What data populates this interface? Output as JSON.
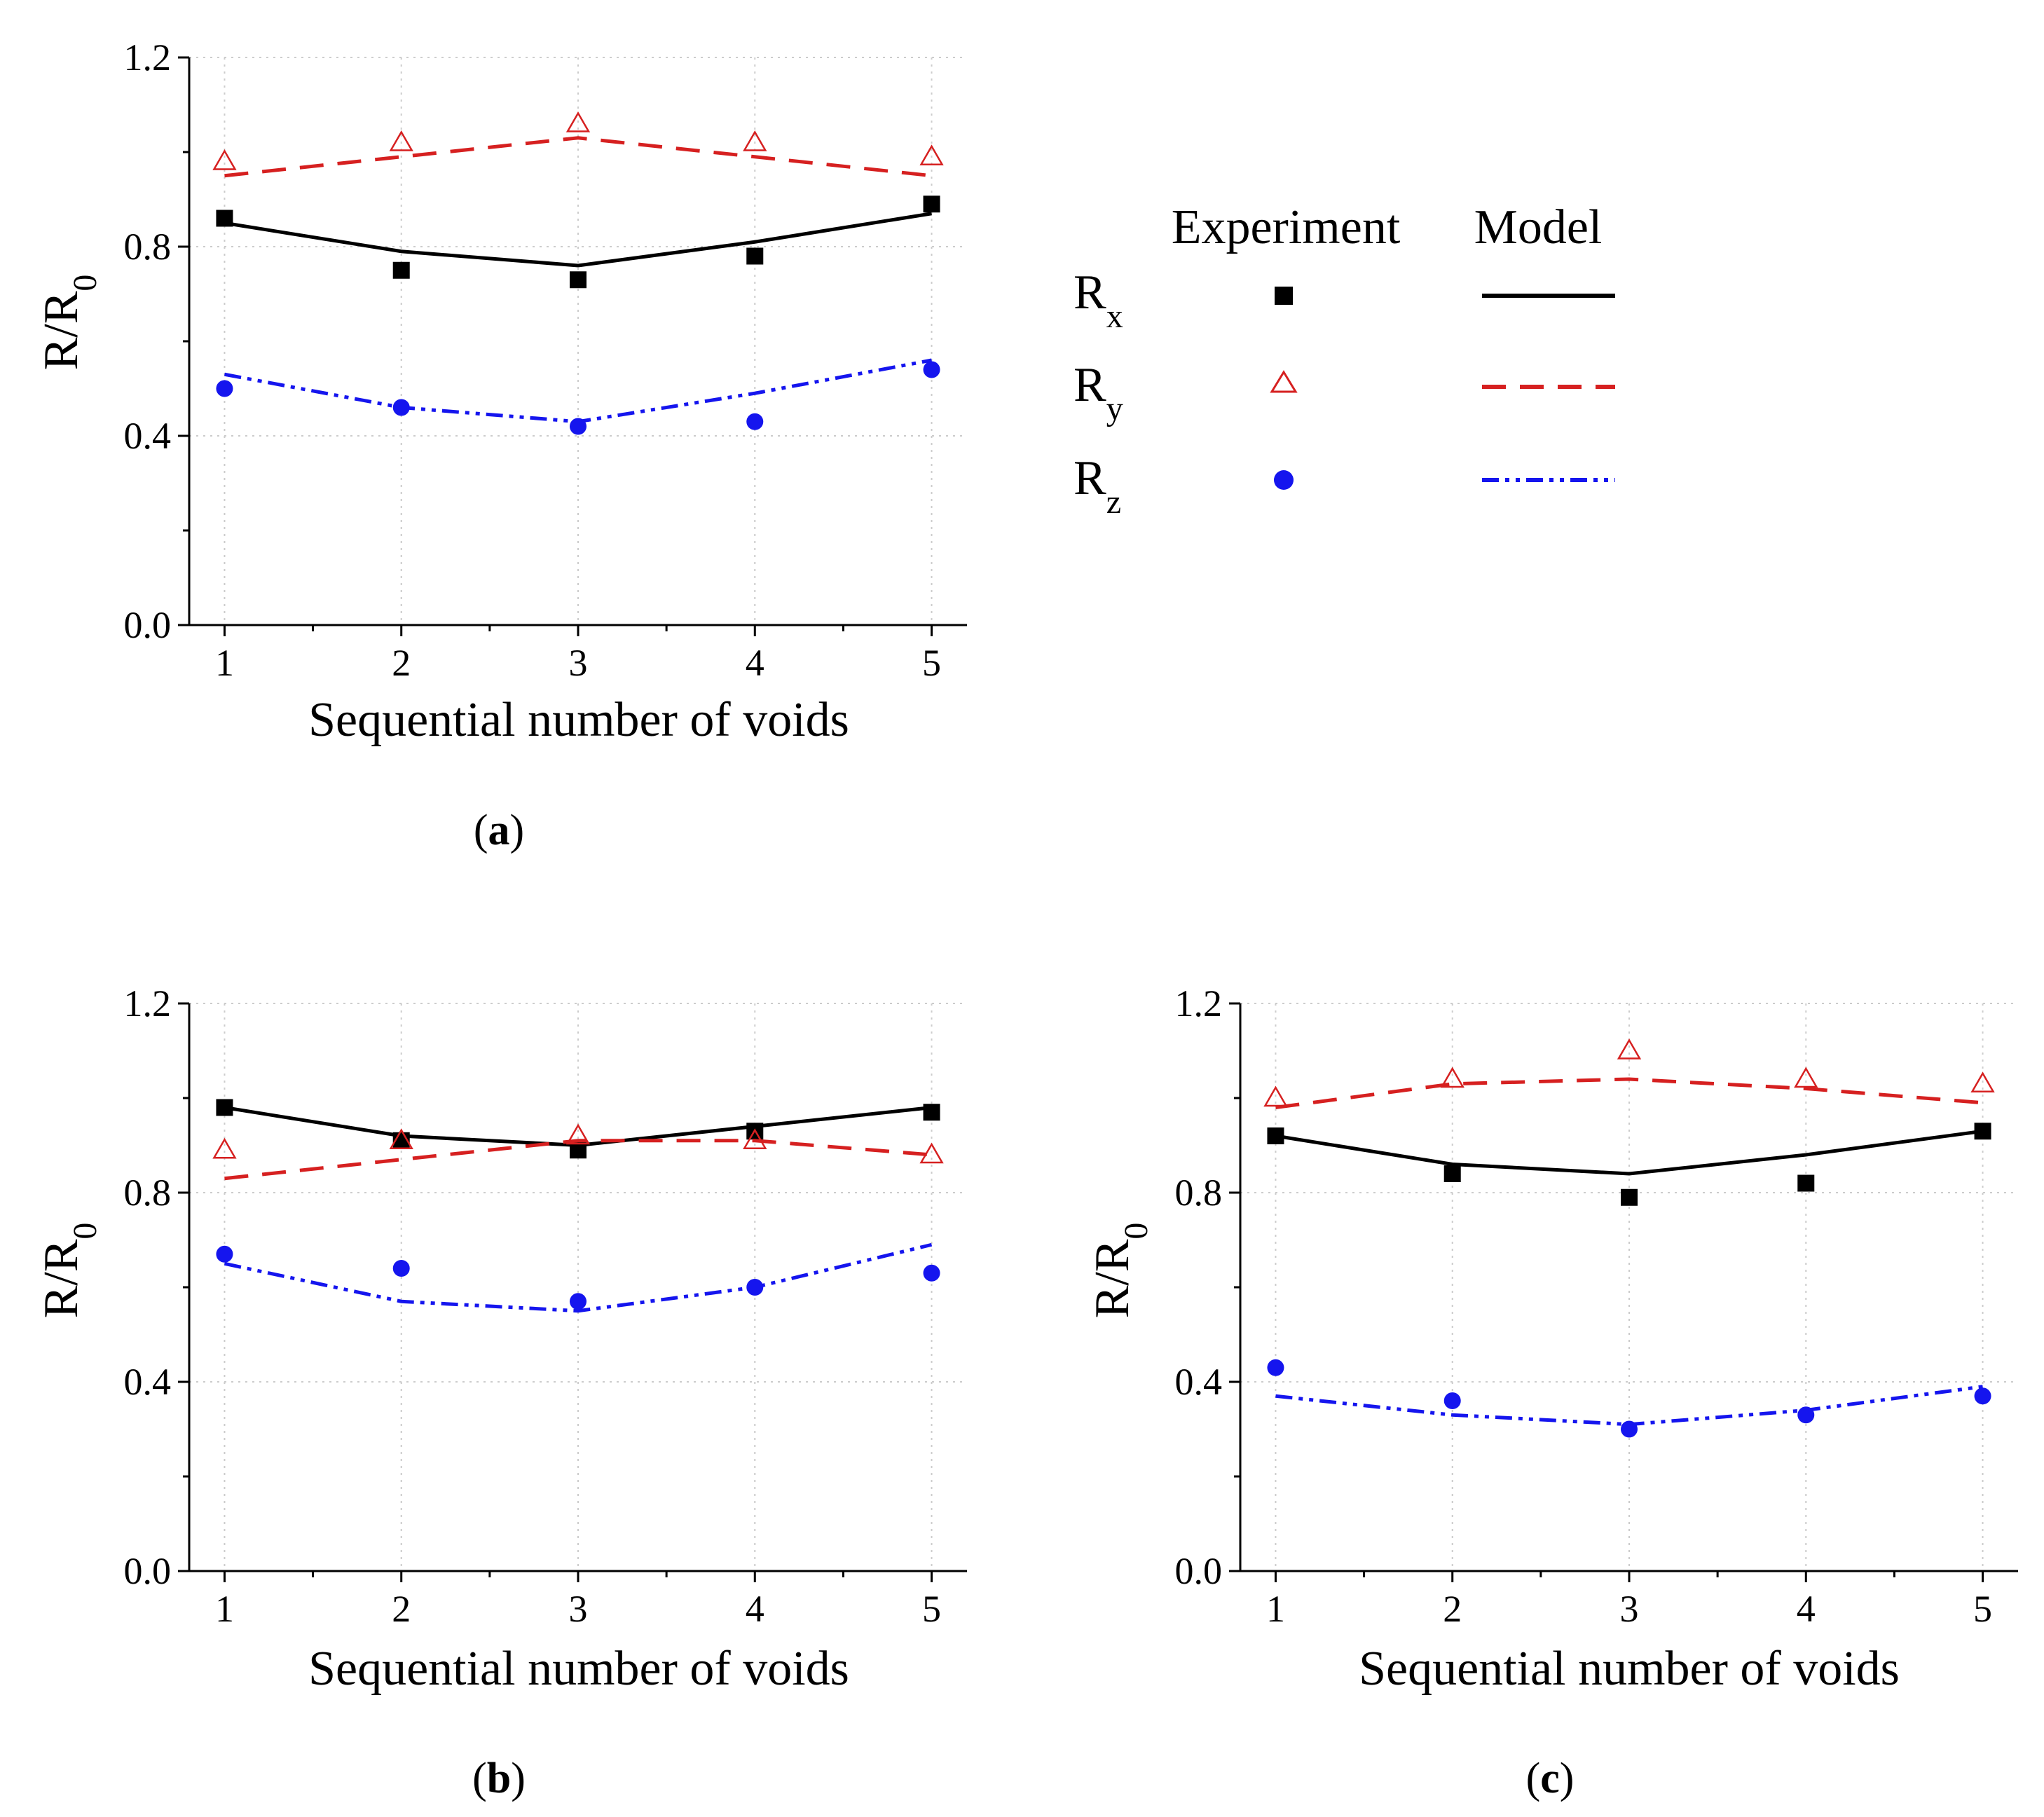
{
  "legend": {
    "experiment_label": "Experiment",
    "model_label": "Model",
    "entries": [
      {
        "key": "Rx",
        "main": "R",
        "sub": "x"
      },
      {
        "key": "Ry",
        "main": "R",
        "sub": "y"
      },
      {
        "key": "Rz",
        "main": "R",
        "sub": "z"
      }
    ]
  },
  "styles": {
    "Rx": {
      "color": "#000000",
      "marker": "square-filled",
      "dash": ""
    },
    "Ry": {
      "color": "#d62020",
      "marker": "triangle-open",
      "dash": "dashed"
    },
    "Rz": {
      "color": "#1515ee",
      "marker": "circle-filled",
      "dash": "dash-dot-dot"
    }
  },
  "chart_data": [
    {
      "type": "scatter",
      "panel_label": {
        "open": "(",
        "letter": "a",
        "close": ")"
      },
      "xlabel": "Sequential number of voids",
      "ylabel": {
        "main": "R/R",
        "sub": "0"
      },
      "x": [
        1,
        2,
        3,
        4,
        5
      ],
      "xticks": [
        "1",
        "2",
        "3",
        "4",
        "5"
      ],
      "yticks": [
        "0.0",
        "0.4",
        "0.8",
        "1.2"
      ],
      "ylim": [
        0,
        1.2
      ],
      "grid": true,
      "series": [
        {
          "name": "Rx",
          "experiment": [
            0.86,
            0.75,
            0.73,
            0.78,
            0.89
          ],
          "model": [
            0.85,
            0.79,
            0.76,
            0.81,
            0.87
          ]
        },
        {
          "name": "Ry",
          "experiment": [
            0.98,
            1.02,
            1.06,
            1.02,
            0.99
          ],
          "model": [
            0.95,
            0.99,
            1.03,
            0.99,
            0.95
          ]
        },
        {
          "name": "Rz",
          "experiment": [
            0.5,
            0.46,
            0.42,
            0.43,
            0.54
          ],
          "model": [
            0.53,
            0.46,
            0.43,
            0.49,
            0.56
          ]
        }
      ]
    },
    {
      "type": "scatter",
      "panel_label": {
        "open": "(",
        "letter": "b",
        "close": ")"
      },
      "xlabel": "Sequential number of voids",
      "ylabel": {
        "main": "R/R",
        "sub": "0"
      },
      "x": [
        1,
        2,
        3,
        4,
        5
      ],
      "xticks": [
        "1",
        "2",
        "3",
        "4",
        "5"
      ],
      "yticks": [
        "0.0",
        "0.4",
        "0.8",
        "1.2"
      ],
      "ylim": [
        0,
        1.2
      ],
      "grid": true,
      "series": [
        {
          "name": "Rx",
          "experiment": [
            0.98,
            0.91,
            0.89,
            0.93,
            0.97
          ],
          "model": [
            0.98,
            0.92,
            0.9,
            0.94,
            0.98
          ]
        },
        {
          "name": "Ry",
          "experiment": [
            0.89,
            0.91,
            0.92,
            0.91,
            0.88
          ],
          "model": [
            0.83,
            0.87,
            0.91,
            0.91,
            0.88
          ]
        },
        {
          "name": "Rz",
          "experiment": [
            0.67,
            0.64,
            0.57,
            0.6,
            0.63
          ],
          "model": [
            0.65,
            0.57,
            0.55,
            0.6,
            0.69
          ]
        }
      ]
    },
    {
      "type": "scatter",
      "panel_label": {
        "open": "(",
        "letter": "c",
        "close": ")"
      },
      "xlabel": "Sequential number of voids",
      "ylabel": {
        "main": "R/R",
        "sub": "0"
      },
      "x": [
        1,
        2,
        3,
        4,
        5
      ],
      "xticks": [
        "1",
        "2",
        "3",
        "4",
        "5"
      ],
      "yticks": [
        "0.0",
        "0.4",
        "0.8",
        "1.2"
      ],
      "ylim": [
        0,
        1.2
      ],
      "grid": true,
      "series": [
        {
          "name": "Rx",
          "experiment": [
            0.92,
            0.84,
            0.79,
            0.82,
            0.93
          ],
          "model": [
            0.92,
            0.86,
            0.84,
            0.88,
            0.93
          ]
        },
        {
          "name": "Ry",
          "experiment": [
            1.0,
            1.04,
            1.1,
            1.04,
            1.03
          ],
          "model": [
            0.98,
            1.03,
            1.04,
            1.02,
            0.99
          ]
        },
        {
          "name": "Rz",
          "experiment": [
            0.43,
            0.36,
            0.3,
            0.33,
            0.37
          ],
          "model": [
            0.37,
            0.33,
            0.31,
            0.34,
            0.39
          ]
        }
      ]
    }
  ]
}
